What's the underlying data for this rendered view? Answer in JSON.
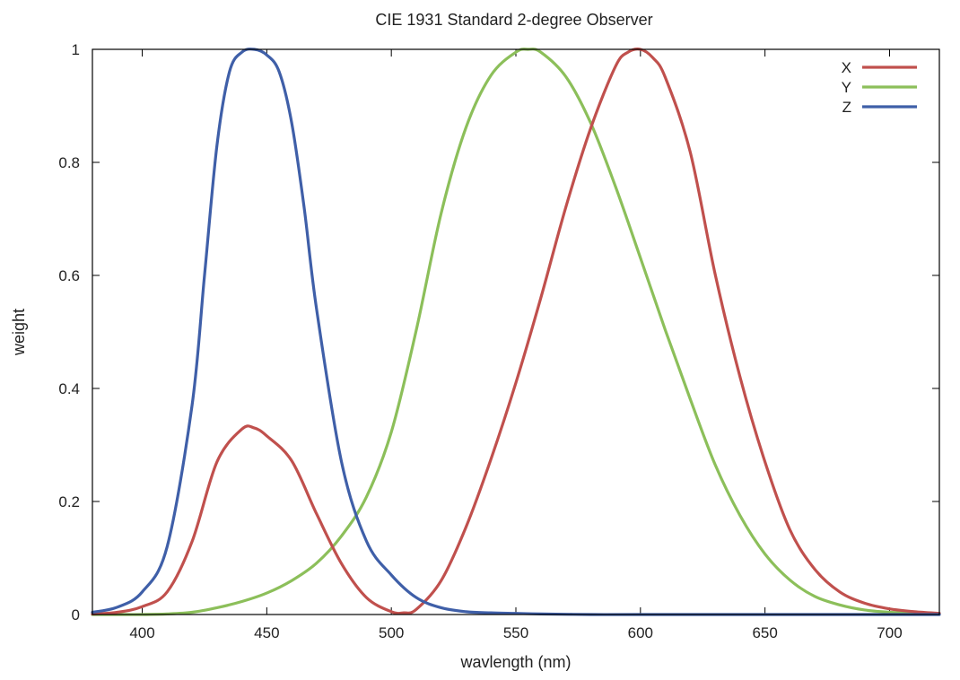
{
  "chart_data": {
    "type": "line",
    "title": "CIE 1931 Standard 2-degree Observer",
    "xlabel": "wavlength (nm)",
    "ylabel": "weight",
    "xlim": [
      380,
      720
    ],
    "ylim": [
      0,
      1
    ],
    "xticks": [
      400,
      450,
      500,
      550,
      600,
      650,
      700
    ],
    "yticks": [
      0,
      0.2,
      0.4,
      0.6,
      0.8,
      1
    ],
    "ytick_labels": [
      "0",
      "0.2",
      "0.4",
      "0.6",
      "0.8",
      "1"
    ],
    "grid": false,
    "legend_position": "top-right",
    "series": [
      {
        "name": "X",
        "color": "#c0504d",
        "x": [
          380,
          390,
          400,
          410,
          420,
          430,
          440,
          445,
          450,
          460,
          470,
          480,
          490,
          500,
          505,
          510,
          520,
          530,
          540,
          550,
          560,
          570,
          580,
          590,
          595,
          600,
          605,
          610,
          620,
          630,
          640,
          650,
          660,
          670,
          680,
          690,
          700,
          710,
          720
        ],
        "y": [
          0.001,
          0.004,
          0.014,
          0.04,
          0.129,
          0.27,
          0.328,
          0.33,
          0.316,
          0.272,
          0.178,
          0.09,
          0.03,
          0.005,
          0.003,
          0.009,
          0.06,
          0.155,
          0.275,
          0.41,
          0.56,
          0.72,
          0.86,
          0.97,
          0.995,
          1.0,
          0.985,
          0.95,
          0.818,
          0.602,
          0.42,
          0.27,
          0.15,
          0.08,
          0.04,
          0.02,
          0.01,
          0.005,
          0.002
        ]
      },
      {
        "name": "Y",
        "color": "#8cbf5a",
        "x": [
          380,
          390,
          400,
          410,
          420,
          430,
          440,
          450,
          460,
          470,
          480,
          490,
          500,
          510,
          520,
          530,
          540,
          550,
          555,
          560,
          570,
          580,
          590,
          600,
          610,
          620,
          630,
          640,
          650,
          660,
          670,
          680,
          690,
          700,
          710,
          720
        ],
        "y": [
          0.0,
          0.0,
          0.0,
          0.001,
          0.004,
          0.012,
          0.023,
          0.038,
          0.06,
          0.091,
          0.139,
          0.208,
          0.323,
          0.503,
          0.71,
          0.862,
          0.954,
          0.995,
          1.0,
          0.995,
          0.952,
          0.87,
          0.757,
          0.631,
          0.503,
          0.381,
          0.265,
          0.175,
          0.107,
          0.061,
          0.032,
          0.017,
          0.008,
          0.004,
          0.002,
          0.001
        ]
      },
      {
        "name": "Z",
        "color": "#3f5fa8",
        "x": [
          380,
          390,
          400,
          410,
          420,
          425,
          430,
          435,
          440,
          445,
          450,
          455,
          460,
          465,
          470,
          480,
          490,
          500,
          510,
          520,
          530,
          540,
          550,
          560,
          580,
          600,
          650,
          700,
          720
        ],
        "y": [
          0.004,
          0.013,
          0.04,
          0.12,
          0.37,
          0.6,
          0.83,
          0.96,
          0.995,
          1.0,
          0.99,
          0.96,
          0.87,
          0.72,
          0.54,
          0.27,
          0.13,
          0.07,
          0.03,
          0.012,
          0.005,
          0.003,
          0.002,
          0.001,
          0.0,
          0.0,
          0.0,
          0.0,
          0.0
        ]
      }
    ]
  }
}
